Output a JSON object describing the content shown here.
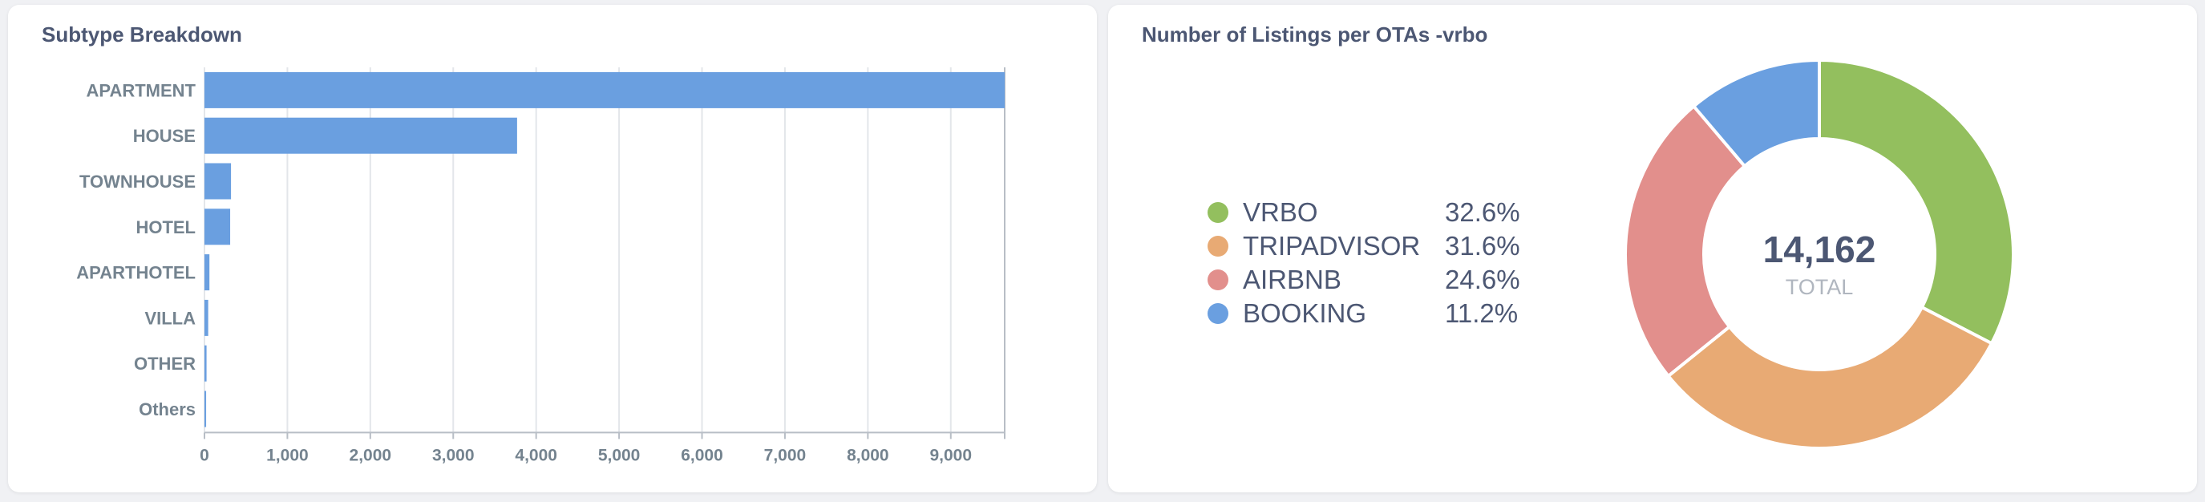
{
  "chart_data": [
    {
      "type": "bar",
      "orientation": "horizontal",
      "title": "Subtype Breakdown",
      "categories": [
        "APARTMENT",
        "HOUSE",
        "TOWNHOUSE",
        "HOTEL",
        "APARTHOTEL",
        "VILLA",
        "OTHER",
        "Others"
      ],
      "values": [
        9650,
        3770,
        320,
        310,
        60,
        45,
        25,
        20
      ],
      "xlim": [
        0,
        9650
      ],
      "xticks": [
        0,
        1000,
        2000,
        3000,
        4000,
        5000,
        6000,
        7000,
        8000,
        9000
      ],
      "xtick_labels": [
        "0",
        "1,000",
        "2,000",
        "3,000",
        "4,000",
        "5,000",
        "6,000",
        "7,000",
        "8,000",
        "9,000"
      ],
      "xlabel": "",
      "ylabel": "",
      "grid": true,
      "color": "#6a9fe0"
    },
    {
      "type": "pie",
      "variant": "donut",
      "title": "Number of Listings per OTAs -vrbo",
      "slices": [
        {
          "label": "VRBO",
          "value": 32.6,
          "pct_label": "32.6%",
          "color": "#93bf5e"
        },
        {
          "label": "TRIPADVISOR",
          "value": 31.6,
          "pct_label": "31.6%",
          "color": "#e8aa74"
        },
        {
          "label": "AIRBNB",
          "value": 24.6,
          "pct_label": "24.6%",
          "color": "#e28f8c"
        },
        {
          "label": "BOOKING",
          "value": 11.2,
          "pct_label": "11.2%",
          "color": "#6a9fe0"
        }
      ],
      "total_value": "14,162",
      "total_label": "TOTAL",
      "legend_position": "left"
    }
  ]
}
